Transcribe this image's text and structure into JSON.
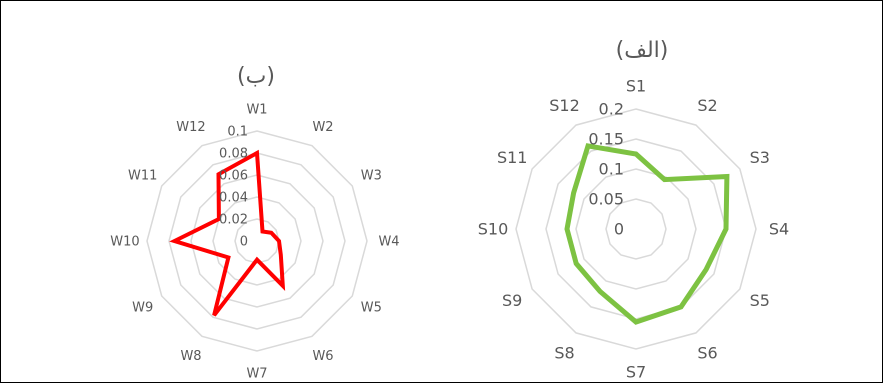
{
  "chart_data": [
    {
      "type": "radar",
      "title": "(ب)",
      "categories": [
        "W1",
        "W2",
        "W3",
        "W4",
        "W5",
        "W6",
        "W7",
        "W8",
        "W9",
        "W10",
        "W11",
        "W12"
      ],
      "rticks": [
        "0",
        "0.02",
        "0.04",
        "0.06",
        "0.08",
        "0.1"
      ],
      "rlim": [
        0,
        0.1
      ],
      "grid": true,
      "series": [
        {
          "values": [
            0.08,
            0.01,
            0.015,
            0.02,
            0.025,
            0.047,
            0.017,
            0.078,
            0.03,
            0.075,
            0.04,
            0.07
          ]
        }
      ],
      "colors": {
        "series": "#FF0000",
        "grid": "#D9D9D9",
        "text": "#595959"
      }
    },
    {
      "type": "radar",
      "title": "(الف)",
      "categories": [
        "S1",
        "S2",
        "S3",
        "S4",
        "S5",
        "S6",
        "S7",
        "S8",
        "S9",
        "S10",
        "S11",
        "S12"
      ],
      "rticks": [
        "0",
        "0.05",
        "0.1",
        "0.15",
        "0.2"
      ],
      "rlim": [
        0,
        0.2
      ],
      "grid": true,
      "series": [
        {
          "values": [
            0.125,
            0.095,
            0.175,
            0.15,
            0.135,
            0.15,
            0.155,
            0.12,
            0.115,
            0.115,
            0.12,
            0.16
          ]
        }
      ],
      "colors": {
        "series": "#7DC242",
        "grid": "#D9D9D9",
        "text": "#595959"
      }
    }
  ]
}
